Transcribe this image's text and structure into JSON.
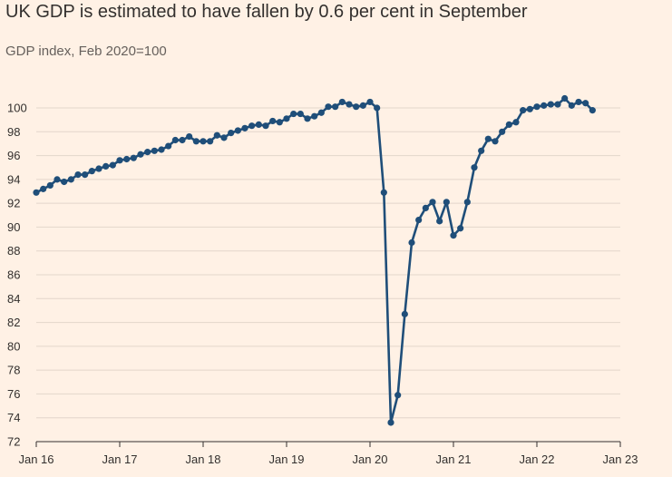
{
  "title": "UK GDP is estimated to have fallen by 0.6 per cent in September",
  "subtitle": "GDP index, Feb 2020=100",
  "colors": {
    "background": "#fff1e5",
    "line": "#1f4e79",
    "grid": "#e3d6cb",
    "axis": "#33302e"
  },
  "chart_data": {
    "type": "line",
    "title": "UK GDP is estimated to have fallen by 0.6 per cent in September",
    "subtitle": "GDP index, Feb 2020=100",
    "xlabel": "",
    "ylabel": "",
    "ylim": [
      72,
      101.5
    ],
    "yticks": [
      72,
      74,
      76,
      78,
      80,
      82,
      84,
      86,
      88,
      90,
      92,
      94,
      96,
      98,
      100
    ],
    "xticks": [
      {
        "label": "Jan 16",
        "month_index": 0
      },
      {
        "label": "Jan 17",
        "month_index": 12
      },
      {
        "label": "Jan 18",
        "month_index": 24
      },
      {
        "label": "Jan 19",
        "month_index": 36
      },
      {
        "label": "Jan 20",
        "month_index": 48
      },
      {
        "label": "Jan 21",
        "month_index": 60
      },
      {
        "label": "Jan 22",
        "month_index": 72
      },
      {
        "label": "Jan 23",
        "month_index": 84
      }
    ],
    "start_month": "Jan 2016",
    "grid": true,
    "series": [
      {
        "name": "GDP index",
        "values": [
          92.9,
          93.2,
          93.5,
          94.0,
          93.8,
          94.0,
          94.4,
          94.4,
          94.7,
          94.9,
          95.1,
          95.2,
          95.6,
          95.7,
          95.8,
          96.1,
          96.3,
          96.4,
          96.5,
          96.8,
          97.3,
          97.3,
          97.6,
          97.2,
          97.2,
          97.2,
          97.7,
          97.5,
          97.9,
          98.1,
          98.3,
          98.5,
          98.6,
          98.5,
          98.9,
          98.8,
          99.1,
          99.5,
          99.5,
          99.1,
          99.3,
          99.6,
          100.1,
          100.1,
          100.5,
          100.3,
          100.1,
          100.2,
          100.5,
          100.0,
          92.9,
          73.6,
          75.9,
          82.7,
          88.7,
          90.6,
          91.6,
          92.1,
          90.5,
          92.1,
          89.3,
          89.9,
          92.1,
          95.0,
          96.4,
          97.4,
          97.2,
          98.0,
          98.6,
          98.8,
          99.8,
          99.9,
          100.1,
          100.2,
          100.3,
          100.3,
          100.8,
          100.2,
          100.5,
          100.4,
          99.8
        ]
      }
    ]
  }
}
